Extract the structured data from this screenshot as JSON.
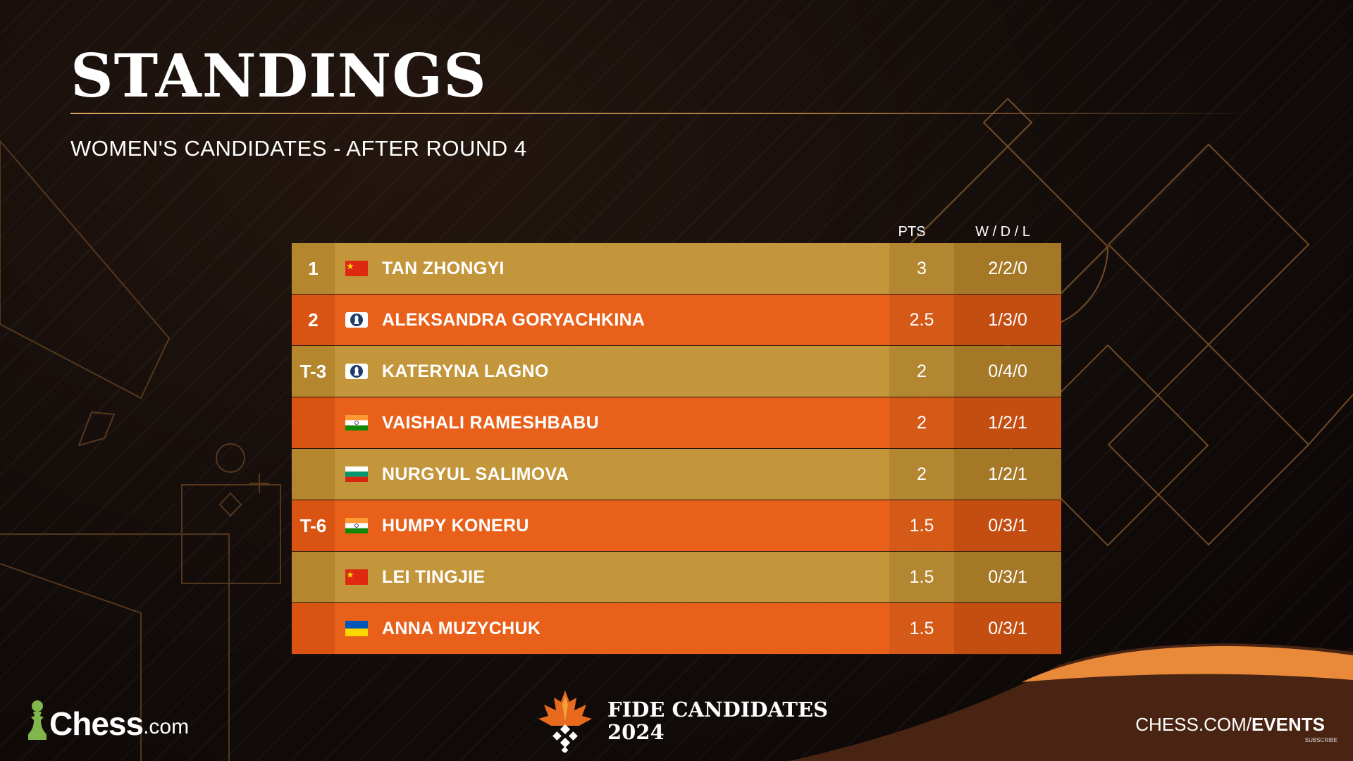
{
  "header": {
    "title": "STANDINGS",
    "subtitle": "WOMEN'S CANDIDATES - AFTER ROUND 4"
  },
  "columns": {
    "pts": "PTS",
    "wdl": "W / D / L"
  },
  "standings": [
    {
      "rank": "1",
      "flag": "china-flag-icon",
      "name": "TAN ZHONGYI",
      "pts": "3",
      "wdl": "2/2/0"
    },
    {
      "rank": "2",
      "flag": "fide-flag-icon",
      "name": "ALEKSANDRA GORYACHKINA",
      "pts": "2.5",
      "wdl": "1/3/0"
    },
    {
      "rank": "T-3",
      "flag": "fide-flag-icon",
      "name": "KATERYNA LAGNO",
      "pts": "2",
      "wdl": "0/4/0"
    },
    {
      "rank": "",
      "flag": "india-flag-icon",
      "name": "VAISHALI RAMESHBABU",
      "pts": "2",
      "wdl": "1/2/1"
    },
    {
      "rank": "",
      "flag": "bulgaria-flag-icon",
      "name": "NURGYUL SALIMOVA",
      "pts": "2",
      "wdl": "1/2/1"
    },
    {
      "rank": "T-6",
      "flag": "india-flag-icon",
      "name": "HUMPY KONERU",
      "pts": "1.5",
      "wdl": "0/3/1"
    },
    {
      "rank": "",
      "flag": "china-flag-icon",
      "name": "LEI TINGJIE",
      "pts": "1.5",
      "wdl": "0/3/1"
    },
    {
      "rank": "",
      "flag": "ukraine-flag-icon",
      "name": "ANNA MUZYCHUK",
      "pts": "1.5",
      "wdl": "0/3/1"
    }
  ],
  "footer": {
    "logo_word": "Chess",
    "logo_suffix": ".com",
    "event_line1": "FIDE CANDIDATES",
    "event_line2": "2024",
    "events_prefix": "CHESS.COM/",
    "events_suffix": "EVENTS",
    "subscribe": "SUBSCRIBE"
  },
  "colors": {
    "row_gold": "#c4963b",
    "row_orange": "#e8601a",
    "accent_line": "#d9a45a",
    "chess_green": "#81b64c"
  }
}
